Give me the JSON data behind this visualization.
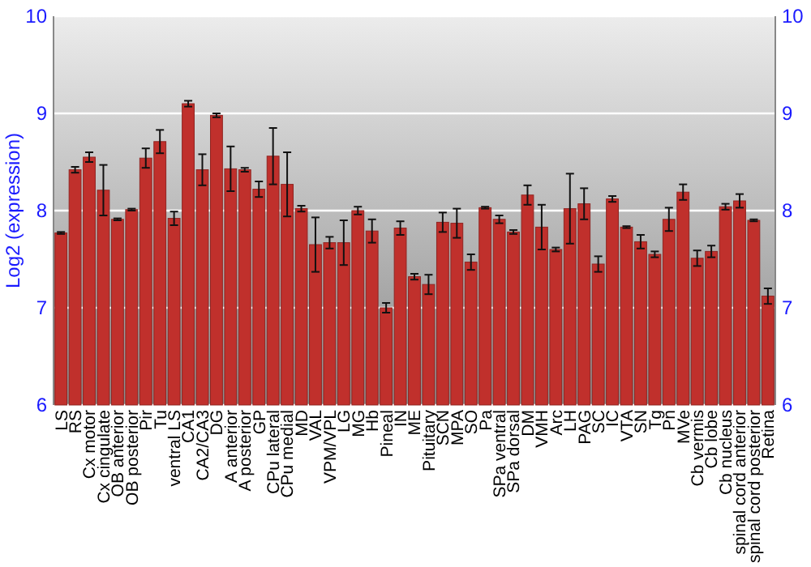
{
  "chart_data": {
    "type": "bar",
    "ylabel": "Log2 (expression)",
    "categories": [
      "LS",
      "RS",
      "Cx motor",
      "Cx cingulate",
      "OB anterior",
      "OB posterior",
      "Pir",
      "Tu",
      "ventral LS",
      "CA1",
      "CA2/CA3",
      "DG",
      "A anterior",
      "A posterior",
      "GP",
      "CPu lateral",
      "CPu medial",
      "MD",
      "VAL",
      "VPM/VPL",
      "LG",
      "MG",
      "Hb",
      "Pineal",
      "IN",
      "ME",
      "Pituitary",
      "SCN",
      "MPA",
      "SO",
      "Pa",
      "SPa ventral",
      "SPa dorsal",
      "DM",
      "VMH",
      "Arc",
      "LH",
      "PAG",
      "SC",
      "IC",
      "VTA",
      "SN",
      "Tg",
      "Pn",
      "MVe",
      "Cb vermis",
      "Cb lobe",
      "Cb nucleus",
      "spinal cord anterior",
      "spinal cord posterior",
      "Retina"
    ],
    "values": [
      7.77,
      8.42,
      8.55,
      8.21,
      7.91,
      8.01,
      8.54,
      8.71,
      7.92,
      9.1,
      8.42,
      8.98,
      8.43,
      8.42,
      8.22,
      8.56,
      8.27,
      8.02,
      7.65,
      7.67,
      7.67,
      8.0,
      7.79,
      7.0,
      7.82,
      7.32,
      7.24,
      7.88,
      7.87,
      7.47,
      8.03,
      7.91,
      7.78,
      8.16,
      7.83,
      7.6,
      8.02,
      8.07,
      7.45,
      8.12,
      7.83,
      7.68,
      7.55,
      7.91,
      8.19,
      7.51,
      7.58,
      8.04,
      8.1,
      7.9,
      7.12
    ],
    "errors": [
      0.01,
      0.03,
      0.05,
      0.26,
      0.01,
      0.01,
      0.1,
      0.12,
      0.07,
      0.03,
      0.16,
      0.02,
      0.23,
      0.02,
      0.08,
      0.29,
      0.33,
      0.03,
      0.28,
      0.06,
      0.23,
      0.04,
      0.12,
      0.05,
      0.07,
      0.03,
      0.1,
      0.1,
      0.15,
      0.08,
      0.01,
      0.04,
      0.02,
      0.1,
      0.23,
      0.02,
      0.36,
      0.16,
      0.08,
      0.03,
      0.01,
      0.07,
      0.03,
      0.12,
      0.08,
      0.08,
      0.06,
      0.03,
      0.07,
      0.01,
      0.08
    ],
    "color": "#c0302c",
    "ylim": [
      6,
      10
    ],
    "yticks": [
      6,
      7,
      8,
      9,
      10
    ],
    "y2lim": [
      6,
      10
    ],
    "y2ticks": [
      6,
      7,
      8,
      9,
      10
    ],
    "grid": "y"
  }
}
